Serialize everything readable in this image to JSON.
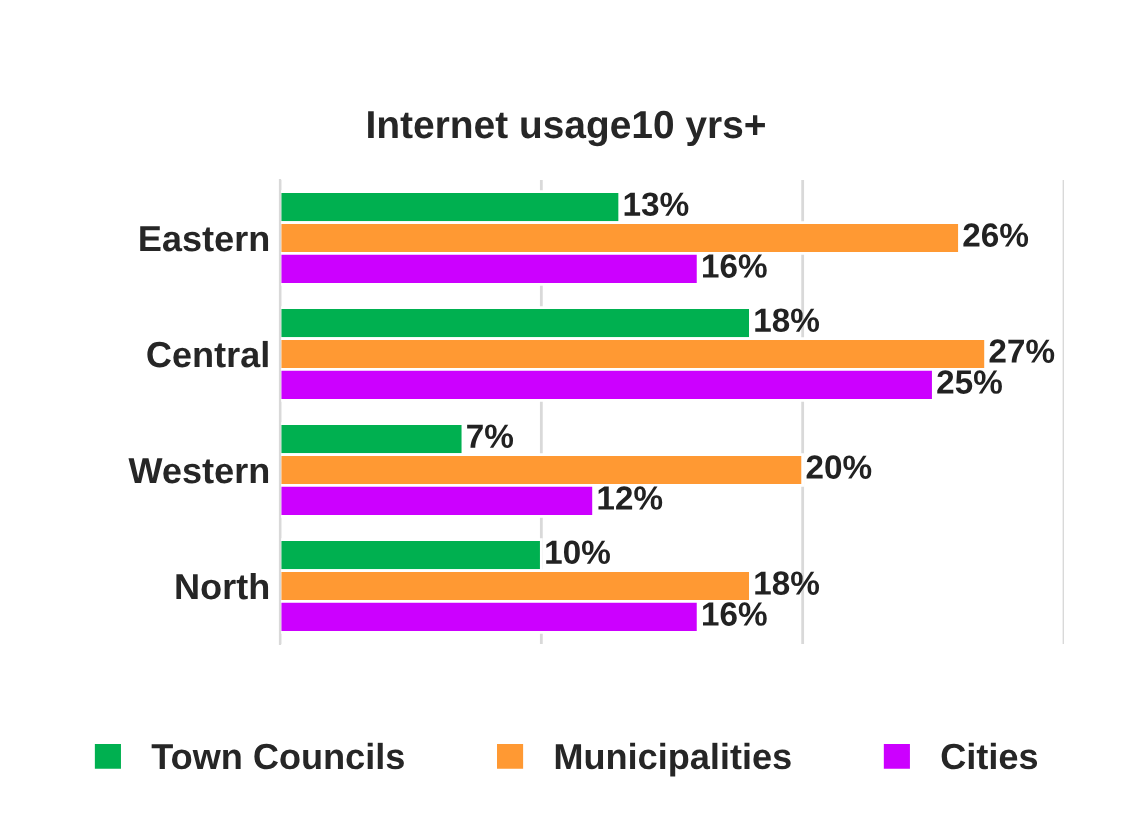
{
  "chart_data": {
    "type": "bar",
    "orientation": "horizontal",
    "title": "Internet usage10 yrs+",
    "categories": [
      "Eastern",
      "Central",
      "Western",
      "North"
    ],
    "series": [
      {
        "name": "Town Councils",
        "color": "#00b050",
        "values": [
          13,
          18,
          7,
          10
        ],
        "value_labels": [
          "13%",
          "18%",
          "7%",
          "10%"
        ]
      },
      {
        "name": "Municipalities",
        "color": "#ff9933",
        "values": [
          26,
          27,
          20,
          18
        ],
        "value_labels": [
          "26%",
          "27%",
          "20%",
          "18%"
        ]
      },
      {
        "name": "Cities",
        "color": "#cc00ff",
        "values": [
          16,
          25,
          12,
          16
        ],
        "value_labels": [
          "16%",
          "25%",
          "12%",
          "16%"
        ]
      }
    ],
    "xlim": [
      0,
      30
    ],
    "xticks": [
      {
        "value": 0,
        "label": null
      },
      {
        "value": 10,
        "label": null
      },
      {
        "value": 20,
        "label": null
      },
      {
        "value": 30,
        "label": null
      }
    ],
    "tick_labels": "y",
    "grid": "x",
    "legend": "bottom"
  }
}
